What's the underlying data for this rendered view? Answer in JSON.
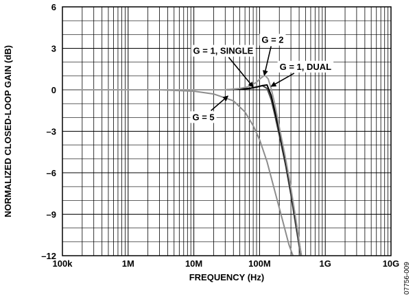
{
  "chart_data": {
    "type": "line",
    "xlabel": "FREQUENCY (Hz)",
    "ylabel": "NORMALIZED CLOSED-LOOP GAIN (dB)",
    "x_scale": "log",
    "xlim": [
      100000,
      10000000000
    ],
    "ylim": [
      -12,
      6
    ],
    "x_ticks": [
      {
        "value": 100000,
        "label": "100k"
      },
      {
        "value": 1000000,
        "label": "1M"
      },
      {
        "value": 10000000,
        "label": "10M"
      },
      {
        "value": 100000000,
        "label": "100M"
      },
      {
        "value": 1000000000,
        "label": "1G"
      },
      {
        "value": 10000000000,
        "label": "10G"
      }
    ],
    "y_ticks": [
      {
        "value": 6,
        "label": "6"
      },
      {
        "value": 3,
        "label": "3"
      },
      {
        "value": 0,
        "label": "0"
      },
      {
        "value": -3,
        "label": "–3"
      },
      {
        "value": -6,
        "label": "–6"
      },
      {
        "value": -9,
        "label": "–9"
      },
      {
        "value": -12,
        "label": "–12"
      }
    ],
    "grid": true,
    "series": [
      {
        "color": "#8c8c8c",
        "x": [
          100000,
          1000000,
          3000000,
          10000000,
          20000000,
          40000000,
          60000000,
          80000000,
          100000000,
          130000000,
          170000000,
          220000000,
          280000000,
          340000000,
          420000000
        ],
        "y": [
          0,
          0,
          0,
          -0.1,
          -0.3,
          -0.8,
          -1.6,
          -2.6,
          -3.6,
          -5.2,
          -7.3,
          -9.3,
          -11.2,
          -12.3,
          -13
        ]
      },
      {
        "color": "#4a4a4a",
        "x": [
          100000,
          1000000,
          10000000,
          30000000,
          50000000,
          70000000,
          90000000,
          110000000,
          130000000,
          150000000,
          170000000,
          200000000,
          250000000,
          300000000,
          350000000,
          400000000,
          450000000
        ],
        "y": [
          0,
          0,
          0,
          0,
          0.05,
          0.1,
          0.2,
          0.3,
          0.1,
          -0.7,
          -1.8,
          -3.3,
          -5.5,
          -7.6,
          -9.6,
          -11.3,
          -12.8
        ]
      },
      {
        "color": "#000000",
        "x": [
          100000,
          1000000,
          10000000,
          30000000,
          50000000,
          70000000,
          90000000,
          110000000,
          130000000,
          150000000,
          170000000,
          200000000,
          250000000,
          300000000,
          350000000,
          400000000,
          460000000
        ],
        "y": [
          0,
          0,
          0,
          0,
          0.05,
          0.1,
          0.2,
          0.3,
          0.35,
          -0.4,
          -1.5,
          -3.0,
          -5.2,
          -7.3,
          -9.3,
          -11.0,
          -12.8
        ]
      },
      {
        "color": "#9a9a9a",
        "x": [
          100000,
          1000000,
          10000000,
          30000000,
          50000000,
          70000000,
          90000000,
          105000000,
          120000000,
          135000000,
          150000000,
          170000000,
          200000000,
          250000000,
          300000000,
          350000000,
          400000000,
          450000000
        ],
        "y": [
          0,
          0,
          0,
          0,
          0.1,
          0.25,
          0.55,
          0.85,
          1.05,
          0.8,
          0.1,
          -1.0,
          -2.7,
          -5.0,
          -7.1,
          -9.1,
          -10.9,
          -12.7
        ]
      }
    ],
    "annotations": [
      {
        "text": "G = 1, SINGLE",
        "x": 28000000,
        "y": 2.6,
        "arrow_to_x": 80000000,
        "arrow_to_y": 0.2
      },
      {
        "text": "G = 2",
        "x": 158000000,
        "y": 3.4,
        "arrow_to_x": 118000000,
        "arrow_to_y": 1.05
      },
      {
        "text": "G = 1, DUAL",
        "x": 500000000,
        "y": 1.45,
        "arrow_to_x": 150000000,
        "arrow_to_y": 0.25
      },
      {
        "text": "G = 5",
        "x": 14000000,
        "y": -2.2,
        "arrow_to_x": 33000000,
        "arrow_to_y": -0.45
      }
    ]
  },
  "figure_id": "07756-009"
}
